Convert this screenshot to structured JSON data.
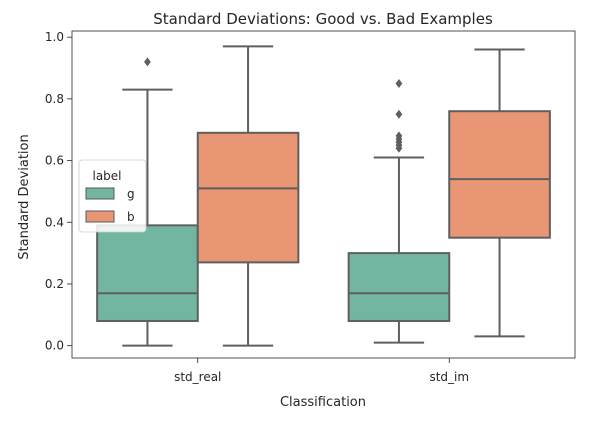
{
  "chart_data": {
    "type": "boxplot",
    "title": "Standard Deviations: Good vs. Bad Examples",
    "xlabel": "Classification",
    "ylabel": "Standard Deviation",
    "categories": [
      "std_real",
      "std_im"
    ],
    "ylim": [
      -0.04,
      1.02
    ],
    "yticks": [
      0.0,
      0.2,
      0.4,
      0.6,
      0.8,
      1.0
    ],
    "ytick_labels": [
      "0.0",
      "0.2",
      "0.4",
      "0.6",
      "0.8",
      "1.0"
    ],
    "legend": {
      "title": "label",
      "placement": "center-left",
      "entries": [
        {
          "label": "g",
          "color": "#72b6a1"
        },
        {
          "label": "b",
          "color": "#e99675"
        }
      ]
    },
    "series": [
      {
        "name": "g",
        "color": "#72b6a1",
        "boxes": [
          {
            "whisker_low": 0.0,
            "q1": 0.08,
            "median": 0.17,
            "q3": 0.39,
            "whisker_high": 0.83,
            "outliers": [
              0.92
            ]
          },
          {
            "whisker_low": 0.01,
            "q1": 0.08,
            "median": 0.17,
            "q3": 0.3,
            "whisker_high": 0.61,
            "outliers": [
              0.64,
              0.65,
              0.66,
              0.67,
              0.68,
              0.75,
              0.85
            ]
          }
        ]
      },
      {
        "name": "b",
        "color": "#e99675",
        "boxes": [
          {
            "whisker_low": 0.0,
            "q1": 0.27,
            "median": 0.51,
            "q3": 0.69,
            "whisker_high": 0.97,
            "outliers": []
          },
          {
            "whisker_low": 0.03,
            "q1": 0.35,
            "median": 0.54,
            "q3": 0.76,
            "whisker_high": 0.96,
            "outliers": []
          }
        ]
      }
    ],
    "grid": false
  }
}
